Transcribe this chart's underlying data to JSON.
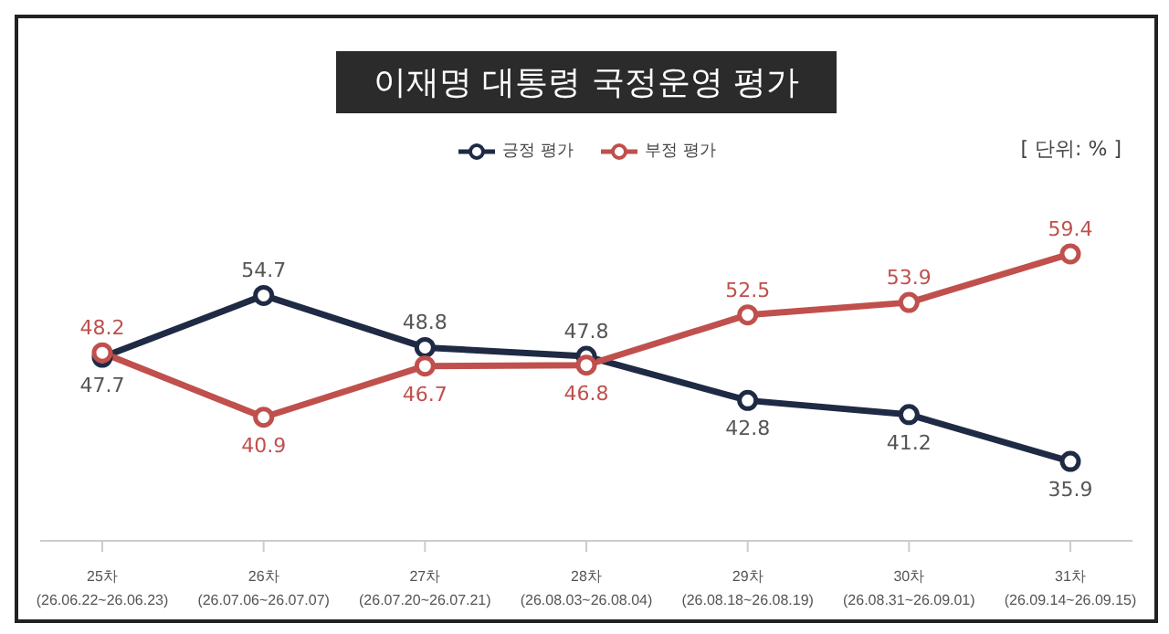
{
  "chart_data": {
    "type": "line",
    "title": "이재명 대통령 국정운영 평가",
    "annotations": [
      "[ 단위: % ]"
    ],
    "categories": [
      "25차 (26.06.22~26.06.23)",
      "26차 (26.07.06~26.07.07)",
      "27차 (26.07.20~26.07.21)",
      "28차 (26.08.03~26.08.04)",
      "29차 (26.08.18~26.08.19)",
      "30차 (26.08.31~26.09.01)",
      "31차 (26.09.14~26.09.15)"
    ],
    "series": [
      {
        "name": "긍정 평가",
        "color": "#1f2a44",
        "values": [
          47.7,
          54.7,
          48.8,
          47.8,
          42.8,
          41.2,
          35.9
        ]
      },
      {
        "name": "부정 평가",
        "color": "#c0504d",
        "values": [
          48.2,
          40.9,
          46.7,
          46.8,
          52.5,
          53.9,
          59.4
        ]
      }
    ],
    "data_labels": true,
    "legend": "top",
    "marker": "circle",
    "line_style": "solid",
    "grid": false
  }
}
